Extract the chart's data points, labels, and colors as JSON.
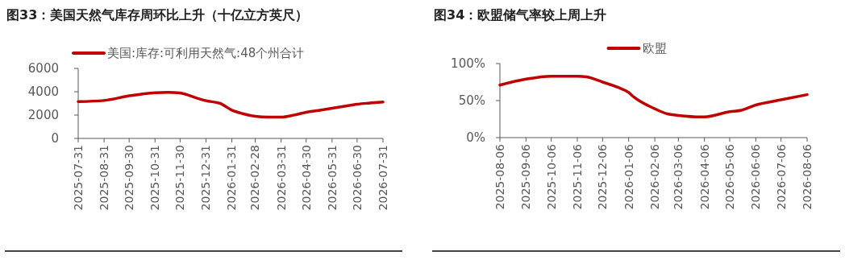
{
  "chart_data": [
    {
      "type": "line",
      "title": "图33：美国天然气库存周环比上升（十亿立方英尺）",
      "legend": "top",
      "grid": false,
      "x": [
        "2025-07-31",
        "2025-08-31",
        "2025-09-30",
        "2025-10-31",
        "2025-11-15",
        "2025-11-30",
        "2025-12-20",
        "2025-12-31",
        "2026-01-17",
        "2026-01-31",
        "2026-02-13",
        "2026-02-28",
        "2026-03-15",
        "2026-03-31",
        "2026-04-16",
        "2026-04-30",
        "2026-05-15",
        "2026-05-31",
        "2026-06-15",
        "2026-06-30",
        "2026-07-15",
        "2026-07-31"
      ],
      "series": [
        {
          "name": "美国:库存:可利用天然气:48个州合计",
          "color": "#c00000",
          "values": [
            3150,
            3250,
            3650,
            3920,
            3950,
            3900,
            3460,
            3230,
            3000,
            2420,
            2120,
            1890,
            1820,
            1820,
            2010,
            2240,
            2400,
            2580,
            2760,
            2930,
            3030,
            3120
          ]
        }
      ],
      "xlim": [
        "2025-07-31",
        "2026-07-31"
      ],
      "xticks": [
        "2025-07-31",
        "2025-08-31",
        "2025-09-30",
        "2025-10-31",
        "2025-11-30",
        "2025-12-31",
        "2026-01-31",
        "2026-02-28",
        "2026-03-31",
        "2026-04-30",
        "2026-05-31",
        "2026-06-30",
        "2026-07-31"
      ],
      "ylim": [
        0,
        6000
      ],
      "yticks": [
        0,
        2000,
        4000,
        6000
      ]
    },
    {
      "type": "line",
      "title": "图34：欧盟储气率较上周上升",
      "legend": "top",
      "grid": false,
      "x": [
        "2025-08-06",
        "2025-09-06",
        "2025-10-06",
        "2025-11-06",
        "2025-11-17",
        "2025-12-06",
        "2025-12-24",
        "2026-01-06",
        "2026-01-12",
        "2026-02-06",
        "2026-02-21",
        "2026-03-06",
        "2026-04-02",
        "2026-04-06",
        "2026-05-06",
        "2026-05-20",
        "2026-06-06",
        "2026-07-06",
        "2026-08-06"
      ],
      "series": [
        {
          "name": "欧盟",
          "color": "#c00000",
          "values": [
            71,
            79,
            83,
            83,
            82,
            75,
            68,
            61,
            55,
            39,
            32,
            30,
            28,
            28,
            35,
            37,
            44,
            51,
            58
          ]
        }
      ],
      "xlim": [
        "2025-08-06",
        "2026-08-06"
      ],
      "xticks": [
        "2025-08-06",
        "2025-09-06",
        "2025-10-06",
        "2025-11-06",
        "2025-12-06",
        "2026-01-06",
        "2026-02-06",
        "2026-03-06",
        "2026-04-06",
        "2026-05-06",
        "2026-06-06",
        "2026-07-06",
        "2026-08-06"
      ],
      "ylim": [
        0,
        100
      ],
      "yticks": [
        {
          "value": 0,
          "label": "0%"
        },
        {
          "value": 50,
          "label": "50%"
        },
        {
          "value": 100,
          "label": "100%"
        }
      ]
    }
  ]
}
